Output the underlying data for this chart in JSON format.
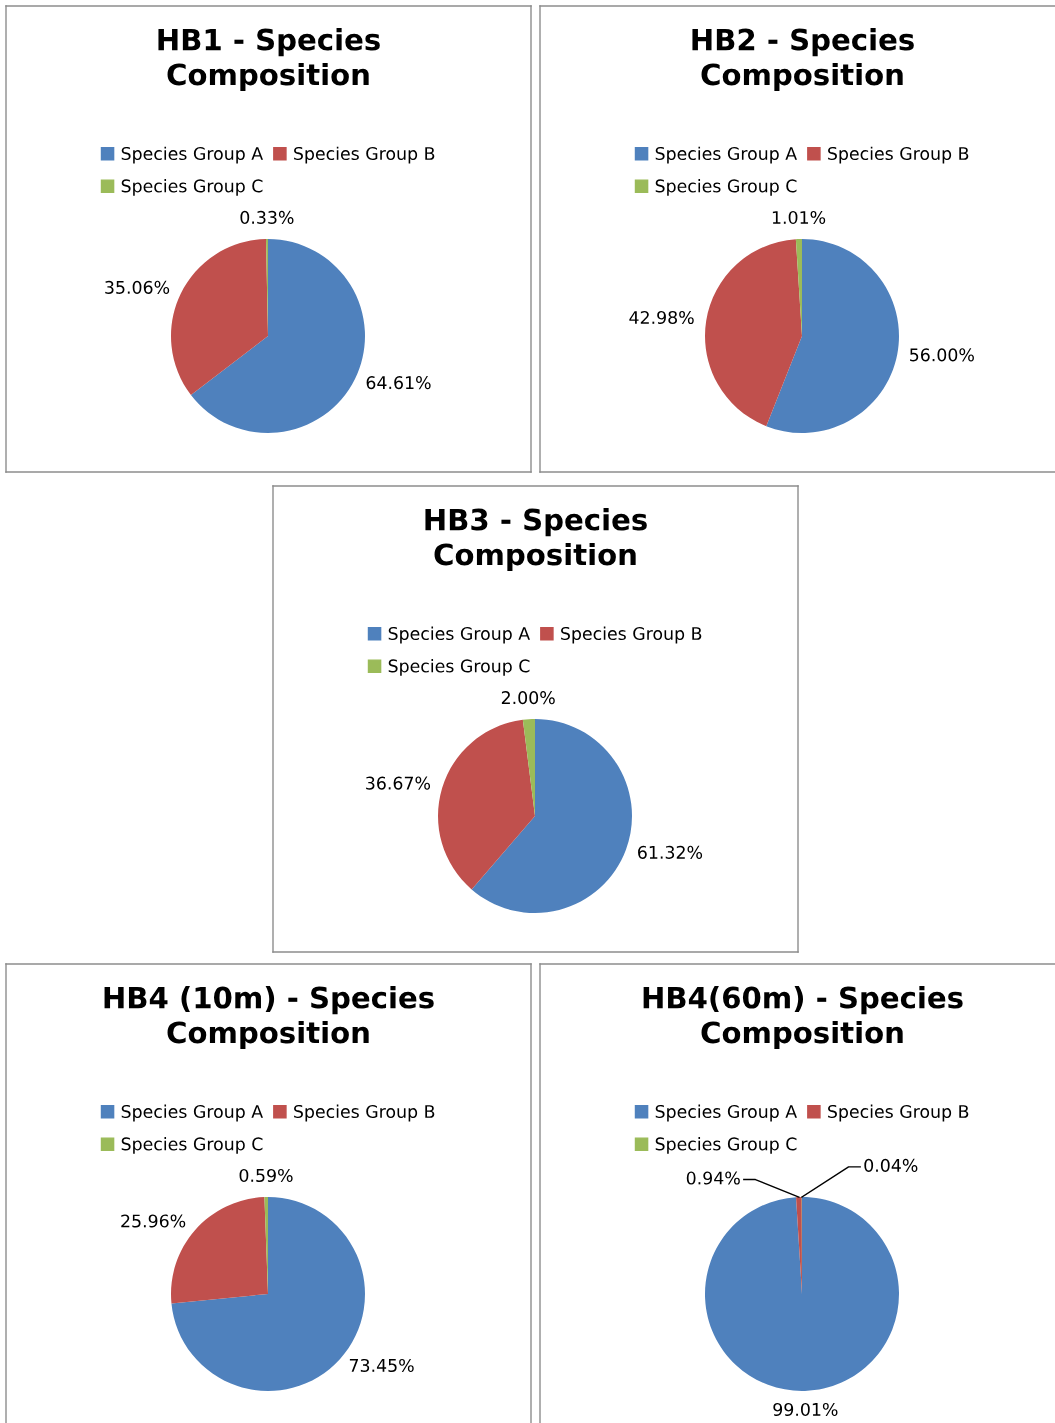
{
  "chart_data": [
    {
      "type": "pie",
      "title": "HB1 - Species Composition",
      "categories": [
        "Species Group A",
        "Species Group B",
        "Species Group C"
      ],
      "values": [
        64.61,
        35.06,
        0.33
      ],
      "colors": [
        "#4f81bd",
        "#c0504d",
        "#9bbb59"
      ],
      "value_labels": [
        "64.61%",
        "35.06%",
        "0.33%"
      ],
      "legend": "top"
    },
    {
      "type": "pie",
      "title": "HB2 - Species Composition",
      "categories": [
        "Species Group A",
        "Species Group B",
        "Species Group C"
      ],
      "values": [
        56.0,
        42.98,
        1.01
      ],
      "colors": [
        "#4f81bd",
        "#c0504d",
        "#9bbb59"
      ],
      "value_labels": [
        "56.00%",
        "42.98%",
        "1.01%"
      ],
      "legend": "top"
    },
    {
      "type": "pie",
      "title": "HB3 - Species Composition",
      "categories": [
        "Species Group A",
        "Species Group B",
        "Species Group C"
      ],
      "values": [
        61.32,
        36.67,
        2.0
      ],
      "colors": [
        "#4f81bd",
        "#c0504d",
        "#9bbb59"
      ],
      "value_labels": [
        "61.32%",
        "36.67%",
        "2.00%"
      ],
      "legend": "top"
    },
    {
      "type": "pie",
      "title": "HB4 (10m) - Species Composition",
      "categories": [
        "Species Group A",
        "Species Group B",
        "Species Group C"
      ],
      "values": [
        73.45,
        25.96,
        0.59
      ],
      "colors": [
        "#4f81bd",
        "#c0504d",
        "#9bbb59"
      ],
      "value_labels": [
        "73.45%",
        "25.96%",
        "0.59%"
      ],
      "legend": "top"
    },
    {
      "type": "pie",
      "title": "HB4(60m) - Species Composition",
      "categories": [
        "Species Group A",
        "Species Group B",
        "Species Group C"
      ],
      "values": [
        99.01,
        0.94,
        0.04
      ],
      "colors": [
        "#4f81bd",
        "#c0504d",
        "#9bbb59"
      ],
      "value_labels": [
        "99.01%",
        "0.94%",
        "0.04%"
      ],
      "legend": "top"
    }
  ]
}
